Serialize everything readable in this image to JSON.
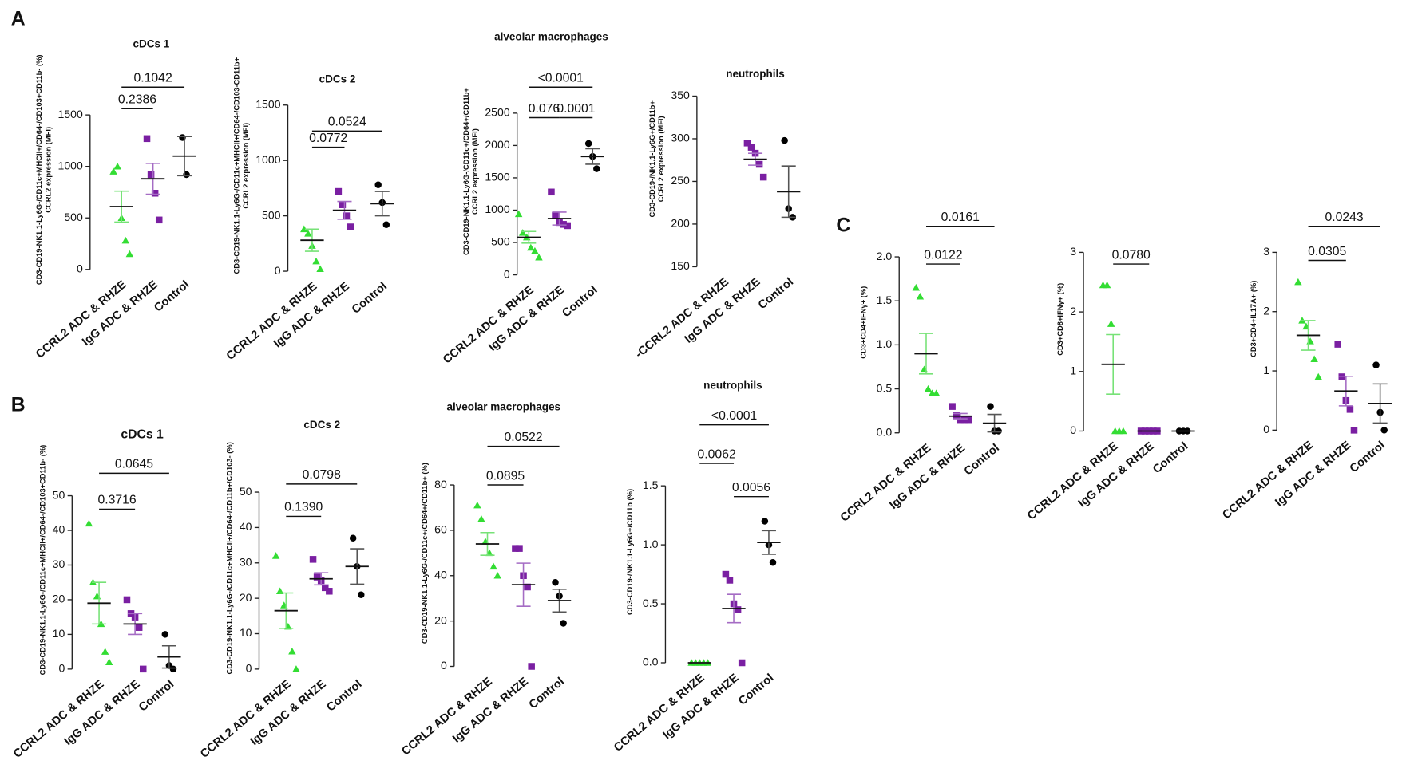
{
  "panel_labels": [
    "A",
    "B",
    "C"
  ],
  "chart_data": [
    {
      "type": "dot",
      "title": "cDCs 1",
      "ylabel": [
        "CD3-CD19-NK1.1-Ly6G-/CD11c+MHCII+/CD64-/CD103+CD11b- (%)",
        "CCRL2 expression (MFI)"
      ],
      "ylim": [
        0,
        1500
      ],
      "yticks": [
        0,
        500,
        1000,
        1500
      ],
      "groups": [
        {
          "name": "CCRL2 ADC & RHZE",
          "color": "#33dd33",
          "marker": "triangle",
          "points": [
            950,
            1000,
            500,
            280,
            150
          ],
          "mean": 610,
          "sem": 150
        },
        {
          "name": "IgG ADC & RHZE",
          "color": "#7a1fa2",
          "marker": "square",
          "points": [
            1270,
            920,
            740,
            480
          ],
          "mean": 880,
          "sem": 150
        },
        {
          "name": "Control",
          "color": "#000000",
          "marker": "circle",
          "points": [
            1280,
            920
          ],
          "mean": 1100,
          "sem": 190
        }
      ],
      "comparisons": [
        {
          "pair": [
            0,
            1
          ],
          "label": "0.2386"
        },
        {
          "pair": [
            0,
            2
          ],
          "label": "0.1042"
        }
      ]
    },
    {
      "type": "dot",
      "title": "cDCs 2",
      "ylabel": [
        "CD3-CD19-NK1.1-Ly6G-/CD11c+MHCII+/CD64-/CD103-CD11b+",
        "CCRL2 expression (MFI)"
      ],
      "ylim": [
        0,
        1500
      ],
      "yticks": [
        0,
        500,
        1000,
        1500
      ],
      "groups": [
        {
          "name": "CCRL2 ADC & RHZE",
          "color": "#33dd33",
          "marker": "triangle",
          "points": [
            380,
            340,
            230,
            90,
            20
          ],
          "mean": 280,
          "sem": 100
        },
        {
          "name": "IgG ADC & RHZE",
          "color": "#7a1fa2",
          "marker": "square",
          "points": [
            720,
            600,
            500,
            400
          ],
          "mean": 550,
          "sem": 80
        },
        {
          "name": "Control",
          "color": "#000000",
          "marker": "circle",
          "points": [
            780,
            620,
            420
          ],
          "mean": 610,
          "sem": 110
        }
      ],
      "comparisons": [
        {
          "pair": [
            0,
            1
          ],
          "label": "0.0772"
        },
        {
          "pair": [
            0,
            2
          ],
          "label": "0.0524"
        }
      ]
    },
    {
      "type": "dot",
      "title": "alveolar macrophages",
      "ylabel": [
        "CD3-CD19-NK1.1-Ly6G-/CD11c+/CD64+/CD11b+",
        "CCRL2 expression (MFI)"
      ],
      "ylim": [
        0,
        2500
      ],
      "yticks": [
        0,
        500,
        1000,
        1500,
        2000,
        2500
      ],
      "groups": [
        {
          "name": "CCRL2 ADC & RHZE",
          "color": "#33dd33",
          "marker": "triangle",
          "points": [
            940,
            650,
            580,
            420,
            370,
            270
          ],
          "mean": 580,
          "sem": 90
        },
        {
          "name": "IgG ADC & RHZE",
          "color": "#7a1fa2",
          "marker": "square",
          "points": [
            1280,
            920,
            810,
            780,
            760
          ],
          "mean": 870,
          "sem": 100
        },
        {
          "name": "Control",
          "color": "#000000",
          "marker": "circle",
          "points": [
            2030,
            1830,
            1640
          ],
          "mean": 1830,
          "sem": 120
        }
      ],
      "comparisons": [
        {
          "pair": [
            0,
            1
          ],
          "label": "0.076"
        },
        {
          "pair": [
            1,
            2
          ],
          "label": "0.0001"
        },
        {
          "pair": [
            0,
            2
          ],
          "label": "<0.0001"
        }
      ]
    },
    {
      "type": "dot",
      "title": "neutrophils",
      "ylabel": [
        "CD3-CD19-/NK1.1-Ly6G+/CD11b+",
        "CCRL2 expression (MFI)"
      ],
      "ylim": [
        150,
        350
      ],
      "yticks": [
        150,
        200,
        250,
        300,
        350
      ],
      "groups": [
        {
          "name": "-CCRL2 ADC & RHZE",
          "color": "#33dd33",
          "marker": "triangle",
          "points": []
        },
        {
          "name": "IgG ADC & RHZE",
          "color": "#7a1fa2",
          "marker": "square",
          "points": [
            295,
            290,
            283,
            270,
            255
          ],
          "mean": 276,
          "sem": 7
        },
        {
          "name": "Control",
          "color": "#000000",
          "marker": "circle",
          "points": [
            298,
            218,
            208
          ],
          "mean": 238,
          "sem": 30
        }
      ],
      "comparisons": []
    },
    {
      "type": "dot",
      "title": "cDCs 1",
      "ylabel": [
        "CD3-CD19-NK1.1-Ly6G-/CD11c+MHCII+/CD64-/CD103+CD11b- (%)"
      ],
      "ylim": [
        0,
        50
      ],
      "yticks": [
        0,
        10,
        20,
        30,
        40,
        50
      ],
      "groups": [
        {
          "name": "CCRL2 ADC & RHZE",
          "color": "#33dd33",
          "marker": "triangle",
          "points": [
            42,
            25,
            21,
            13,
            5,
            2
          ],
          "mean": 19,
          "sem": 6
        },
        {
          "name": "IgG ADC & RHZE",
          "color": "#7a1fa2",
          "marker": "square",
          "points": [
            20,
            16,
            15,
            12,
            0
          ],
          "mean": 13,
          "sem": 3
        },
        {
          "name": "Control",
          "color": "#000000",
          "marker": "circle",
          "points": [
            10,
            1,
            0
          ],
          "mean": 3.5,
          "sem": 3.2
        }
      ],
      "comparisons": [
        {
          "pair": [
            0,
            1
          ],
          "label": "0.3716"
        },
        {
          "pair": [
            0,
            2
          ],
          "label": "0.0645"
        }
      ]
    },
    {
      "type": "dot",
      "title": "cDCs 2",
      "ylabel": [
        "CD3-CD19-NK1.1-Ly6G-/CD11c+MHCII+/CD64-/CD11b+/CD103- (%)"
      ],
      "ylim": [
        0,
        50
      ],
      "yticks": [
        0,
        10,
        20,
        30,
        40,
        50
      ],
      "groups": [
        {
          "name": "CCRL2 ADC & RHZE",
          "color": "#33dd33",
          "marker": "triangle",
          "points": [
            32,
            22,
            18,
            12,
            5,
            0
          ],
          "mean": 16.5,
          "sem": 5
        },
        {
          "name": "IgG ADC & RHZE",
          "color": "#7a1fa2",
          "marker": "square",
          "points": [
            31,
            26,
            25,
            23,
            22
          ],
          "mean": 25.5,
          "sem": 1.7
        },
        {
          "name": "Control",
          "color": "#000000",
          "marker": "circle",
          "points": [
            37,
            29,
            21
          ],
          "mean": 29,
          "sem": 5
        }
      ],
      "comparisons": [
        {
          "pair": [
            0,
            1
          ],
          "label": "0.1390"
        },
        {
          "pair": [
            0,
            2
          ],
          "label": "0.0798"
        }
      ]
    },
    {
      "type": "dot",
      "title": "alveolar macrophages",
      "ylabel": [
        "CD3-CD19-NK1.1-Ly6G-/CD11c+/CD64+/CD11b+ (%)"
      ],
      "ylim": [
        0,
        80
      ],
      "yticks": [
        0,
        20,
        40,
        60,
        80
      ],
      "groups": [
        {
          "name": "CCRL2 ADC & RHZE",
          "color": "#33dd33",
          "marker": "triangle",
          "points": [
            71,
            65,
            55,
            50,
            44,
            40
          ],
          "mean": 54,
          "sem": 5
        },
        {
          "name": "IgG ADC & RHZE",
          "color": "#7a1fa2",
          "marker": "square",
          "points": [
            52,
            52,
            40,
            35,
            0
          ],
          "mean": 36,
          "sem": 9.5
        },
        {
          "name": "Control",
          "color": "#000000",
          "marker": "circle",
          "points": [
            37,
            31,
            19
          ],
          "mean": 29,
          "sem": 5
        }
      ],
      "comparisons": [
        {
          "pair": [
            0,
            1
          ],
          "label": "0.0895"
        },
        {
          "pair": [
            0,
            2
          ],
          "label": "0.0522"
        }
      ]
    },
    {
      "type": "dot",
      "title": "neutrophils",
      "ylabel": [
        "CD3-CD19-/NK1.1-Ly6G+/CD11b (%)"
      ],
      "ylim": [
        0,
        1.5
      ],
      "yticks": [
        {
          "value": 0,
          "label": "0.0"
        },
        0.5,
        {
          "value": 1,
          "label": "1.0"
        },
        1.5
      ],
      "groups": [
        {
          "name": "CCRL2 ADC & RHZE",
          "color": "#33dd33",
          "marker": "triangle",
          "points": [
            0,
            0,
            0,
            0,
            0
          ],
          "mean": 0,
          "sem": 0
        },
        {
          "name": "IgG ADC & RHZE",
          "color": "#7a1fa2",
          "marker": "square",
          "points": [
            0.75,
            0.7,
            0.5,
            0.45,
            0
          ],
          "mean": 0.46,
          "sem": 0.12
        },
        {
          "name": "Control",
          "color": "#000000",
          "marker": "circle",
          "points": [
            1.2,
            1.0,
            0.85
          ],
          "mean": 1.02,
          "sem": 0.1
        }
      ],
      "comparisons": [
        {
          "pair": [
            0,
            1
          ],
          "label": "0.0062"
        },
        {
          "pair": [
            1,
            2
          ],
          "label": "0.0056"
        },
        {
          "pair": [
            0,
            2
          ],
          "label": "<0.0001"
        }
      ]
    },
    {
      "type": "dot",
      "ylabel": [
        "CD3+CD4+IFNγ+ (%)"
      ],
      "ylim": [
        0,
        2
      ],
      "yticks": [
        {
          "value": 0,
          "label": "0.0"
        },
        0.5,
        {
          "value": 1,
          "label": "1.0"
        },
        1.5,
        {
          "value": 2,
          "label": "2.0"
        }
      ],
      "groups": [
        {
          "name": "CCRL2 ADC & RHZE",
          "color": "#33dd33",
          "marker": "triangle",
          "points": [
            1.65,
            1.55,
            0.72,
            0.5,
            0.45,
            0.45
          ],
          "mean": 0.9,
          "sem": 0.23
        },
        {
          "name": "IgG ADC & RHZE",
          "color": "#7a1fa2",
          "marker": "square",
          "points": [
            0.3,
            0.2,
            0.15,
            0.15,
            0.15
          ],
          "mean": 0.19,
          "sem": 0.03
        },
        {
          "name": "Control",
          "color": "#000000",
          "marker": "circle",
          "points": [
            0.3,
            0.02,
            0.02
          ],
          "mean": 0.11,
          "sem": 0.1
        }
      ],
      "comparisons": [
        {
          "pair": [
            0,
            1
          ],
          "label": "0.0122"
        },
        {
          "pair": [
            0,
            2
          ],
          "label": "0.0161"
        }
      ]
    },
    {
      "type": "dot",
      "ylabel": [
        "CD3+CD8+IFNγ+ (%)"
      ],
      "ylim": [
        0,
        3
      ],
      "yticks": [
        0,
        1,
        2,
        3
      ],
      "groups": [
        {
          "name": "CCRL2 ADC & RHZE",
          "color": "#33dd33",
          "marker": "triangle",
          "points": [
            2.45,
            2.45,
            1.8,
            0,
            0,
            0
          ],
          "mean": 1.12,
          "sem": 0.5
        },
        {
          "name": "IgG ADC & RHZE",
          "color": "#7a1fa2",
          "marker": "square",
          "points": [
            0,
            0,
            0,
            0,
            0
          ],
          "mean": 0,
          "sem": 0
        },
        {
          "name": "Control",
          "color": "#000000",
          "marker": "circle",
          "points": [
            0,
            0,
            0
          ],
          "mean": 0,
          "sem": 0
        }
      ],
      "comparisons": [
        {
          "pair": [
            0,
            1
          ],
          "label": "0.0780"
        }
      ]
    },
    {
      "type": "dot",
      "ylabel": [
        "CD3+CD4+IL17A+ (%)"
      ],
      "ylim": [
        0,
        3
      ],
      "yticks": [
        0,
        1,
        2,
        3
      ],
      "groups": [
        {
          "name": "CCRL2 ADC & RHZE",
          "color": "#33dd33",
          "marker": "triangle",
          "points": [
            2.5,
            1.85,
            1.75,
            1.5,
            1.2,
            0.9
          ],
          "mean": 1.6,
          "sem": 0.25
        },
        {
          "name": "IgG ADC & RHZE",
          "color": "#7a1fa2",
          "marker": "square",
          "points": [
            1.45,
            0.9,
            0.5,
            0.35,
            0
          ],
          "mean": 0.66,
          "sem": 0.25
        },
        {
          "name": "Control",
          "color": "#000000",
          "marker": "circle",
          "points": [
            1.1,
            0.3,
            0
          ],
          "mean": 0.45,
          "sem": 0.33
        }
      ],
      "comparisons": [
        {
          "pair": [
            0,
            1
          ],
          "label": "0.0305"
        },
        {
          "pair": [
            0,
            2
          ],
          "label": "0.0243"
        }
      ]
    }
  ]
}
